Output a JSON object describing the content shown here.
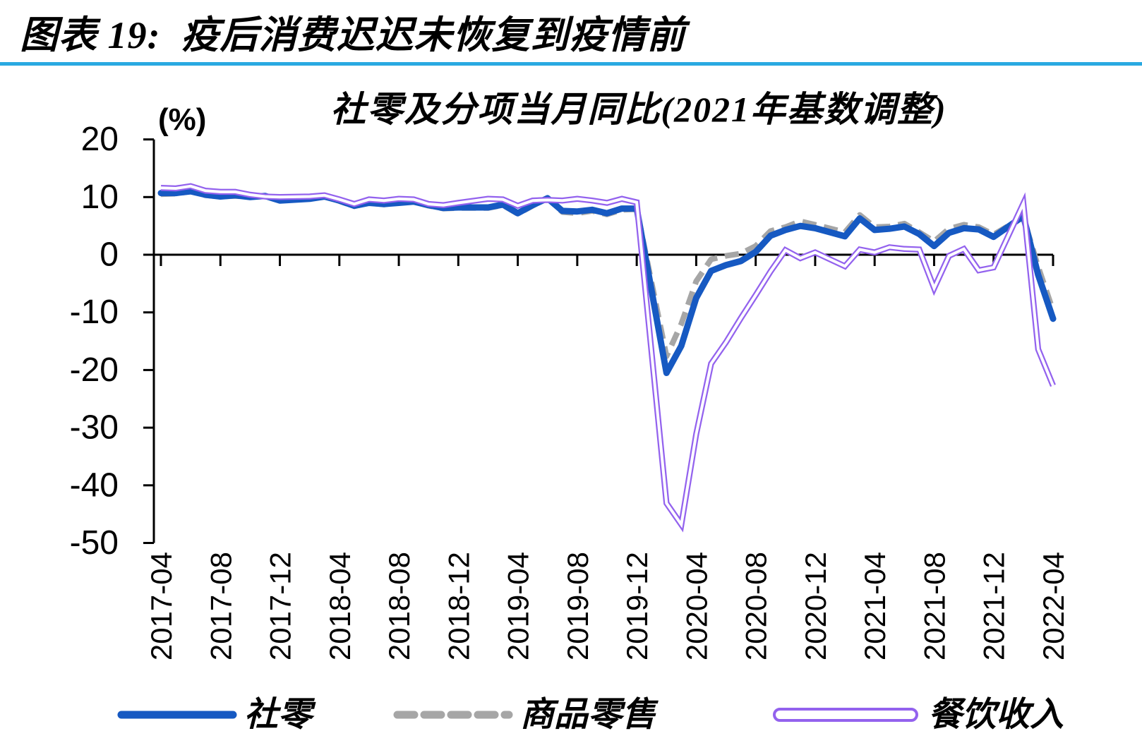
{
  "header": {
    "title": "图表 19:  疫后消费迟迟未恢复到疫情前"
  },
  "chart": {
    "title": "社零及分项当月同比(2021年基数调整)",
    "unit_label": "(%)"
  },
  "colors": {
    "header_rule": "#29A9E1",
    "axis": "#000000",
    "retail_total": "#1659C2",
    "goods_retail": "#A6A6A6",
    "catering": "#9362EE"
  },
  "chart_data": {
    "type": "line",
    "title": "社零及分项当月同比(2021年基数调整)",
    "ylabel": "(%)",
    "ylim": [
      -50,
      20
    ],
    "y_ticks": [
      20,
      10,
      0,
      -10,
      -20,
      -30,
      -40,
      -50
    ],
    "grid": "zero-line-only",
    "legend_position": "bottom",
    "x_tick_labels": [
      "2017-04",
      "2017-08",
      "2017-12",
      "2018-04",
      "2018-08",
      "2018-12",
      "2019-04",
      "2019-08",
      "2019-12",
      "2020-04",
      "2020-08",
      "2020-12",
      "2021-04",
      "2021-08",
      "2021-12",
      "2022-04"
    ],
    "x": [
      "2017-04",
      "2017-05",
      "2017-06",
      "2017-07",
      "2017-08",
      "2017-09",
      "2017-10",
      "2017-11",
      "2017-12",
      "2018-02",
      "2018-03",
      "2018-04",
      "2018-05",
      "2018-06",
      "2018-07",
      "2018-08",
      "2018-09",
      "2018-10",
      "2018-11",
      "2018-12",
      "2019-02",
      "2019-03",
      "2019-04",
      "2019-05",
      "2019-06",
      "2019-07",
      "2019-08",
      "2019-09",
      "2019-10",
      "2019-11",
      "2019-12",
      "2020-02",
      "2020-03",
      "2020-04",
      "2020-05",
      "2020-06",
      "2020-07",
      "2020-08",
      "2020-09",
      "2020-10",
      "2020-11",
      "2020-12",
      "2021-02",
      "2021-03",
      "2021-04",
      "2021-05",
      "2021-06",
      "2021-07",
      "2021-08",
      "2021-09",
      "2021-10",
      "2021-11",
      "2021-12",
      "2022-02",
      "2022-03",
      "2022-04"
    ],
    "series": [
      {
        "name": "社零",
        "style": "solid",
        "color": "#1659C2",
        "values": [
          10.7,
          10.7,
          11.0,
          10.4,
          10.1,
          10.3,
          10.0,
          10.2,
          9.4,
          9.7,
          10.1,
          9.4,
          8.5,
          9.0,
          8.8,
          9.0,
          9.2,
          8.6,
          8.1,
          8.2,
          8.2,
          8.7,
          7.2,
          8.6,
          9.8,
          7.6,
          7.5,
          7.8,
          7.2,
          8.0,
          8.0,
          -20.5,
          -15.8,
          -7.5,
          -2.8,
          -1.8,
          -1.1,
          0.5,
          3.3,
          4.3,
          5.0,
          4.6,
          3.2,
          6.3,
          4.3,
          4.5,
          4.9,
          3.6,
          1.5,
          3.8,
          4.6,
          4.4,
          3.1,
          6.7,
          -3.5,
          -11.1
        ]
      },
      {
        "name": "商品零售",
        "style": "dashed",
        "color": "#A6A6A6",
        "values": [
          10.5,
          10.6,
          11.0,
          10.3,
          10.1,
          10.2,
          10.0,
          10.3,
          9.4,
          9.7,
          10.2,
          9.3,
          8.4,
          9.0,
          8.7,
          9.1,
          9.2,
          8.5,
          8.0,
          8.1,
          8.1,
          8.6,
          7.1,
          8.5,
          9.8,
          7.4,
          7.2,
          7.6,
          7.0,
          7.8,
          7.9,
          -17.6,
          -12.0,
          -4.6,
          -0.8,
          -0.2,
          0.2,
          1.5,
          4.1,
          4.8,
          5.8,
          5.2,
          3.9,
          6.9,
          4.8,
          4.9,
          5.4,
          3.9,
          2.3,
          4.5,
          5.2,
          4.8,
          3.5,
          6.5,
          -2.1,
          -9.7
        ]
      },
      {
        "name": "餐饮收入",
        "style": "double",
        "color": "#9362EE",
        "values": [
          11.6,
          11.5,
          11.9,
          11.1,
          10.9,
          10.9,
          10.4,
          10.1,
          10.0,
          10.1,
          10.3,
          9.6,
          8.8,
          9.6,
          9.4,
          9.7,
          9.6,
          8.8,
          8.6,
          9.0,
          9.7,
          9.6,
          8.5,
          9.4,
          9.5,
          9.4,
          9.7,
          9.4,
          9.0,
          9.7,
          9.1,
          -43.1,
          -46.8,
          -31.1,
          -18.9,
          -15.2,
          -11.0,
          -7.0,
          -2.9,
          0.8,
          -0.6,
          0.4,
          -2.0,
          0.9,
          0.4,
          1.3,
          1.0,
          0.9,
          -5.8,
          -0.2,
          1.0,
          -2.7,
          -2.2,
          8.9,
          -16.4,
          -22.7
        ]
      }
    ]
  }
}
